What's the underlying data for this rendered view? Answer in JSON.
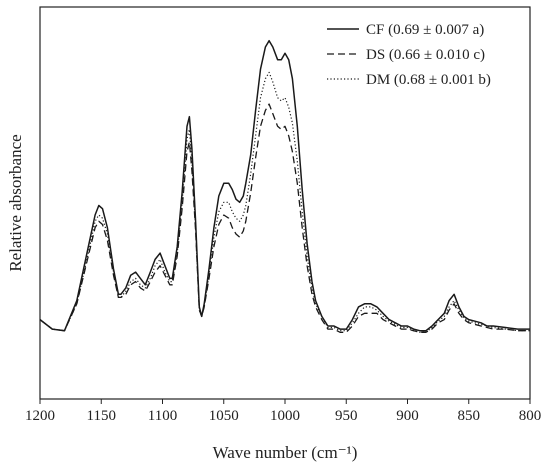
{
  "chart_data": {
    "type": "line",
    "title": "",
    "xlabel": "Wave number (cm⁻¹)",
    "ylabel": "Relative absorbance",
    "x_reversed": true,
    "xlim": [
      1200,
      800
    ],
    "ylim": [
      0,
      1
    ],
    "x_ticks": [
      "1200",
      "1150",
      "1100",
      "1050",
      "1000",
      "950",
      "900",
      "850",
      "800"
    ],
    "x_tick_values": [
      1200,
      1150,
      1100,
      1050,
      1000,
      950,
      900,
      850,
      800
    ],
    "y_ticks_shown": false,
    "grid": false,
    "legend_position": "top-right",
    "series": [
      {
        "name": "CF",
        "legend_label": "CF  (0.69 ± 0.007 a)",
        "line_style": "solid",
        "x": [
          1200,
          1190,
          1180,
          1170,
          1160,
          1155,
          1152,
          1149,
          1145,
          1140,
          1136,
          1134,
          1130,
          1126,
          1122,
          1118,
          1114,
          1110,
          1106,
          1102,
          1098,
          1094,
          1092,
          1088,
          1084,
          1080,
          1078,
          1076,
          1073,
          1070,
          1068,
          1066,
          1062,
          1058,
          1054,
          1050,
          1046,
          1043,
          1040,
          1037,
          1034,
          1032,
          1028,
          1024,
          1020,
          1016,
          1013,
          1010,
          1006,
          1003,
          1000,
          997,
          994,
          990,
          986,
          982,
          978,
          975,
          970,
          965,
          960,
          955,
          950,
          945,
          940,
          935,
          930,
          925,
          920,
          915,
          910,
          905,
          900,
          895,
          890,
          885,
          880,
          875,
          870,
          866,
          862,
          858,
          854,
          850,
          845,
          840,
          835,
          830,
          820,
          810,
          800
        ],
        "y": [
          0.14,
          0.11,
          0.105,
          0.2,
          0.38,
          0.47,
          0.5,
          0.49,
          0.43,
          0.3,
          0.22,
          0.22,
          0.24,
          0.28,
          0.29,
          0.27,
          0.25,
          0.29,
          0.33,
          0.35,
          0.31,
          0.27,
          0.27,
          0.37,
          0.54,
          0.75,
          0.78,
          0.68,
          0.45,
          0.18,
          0.15,
          0.19,
          0.3,
          0.43,
          0.53,
          0.57,
          0.57,
          0.55,
          0.52,
          0.51,
          0.53,
          0.57,
          0.66,
          0.8,
          0.93,
          1.0,
          1.02,
          1.0,
          0.96,
          0.96,
          0.98,
          0.96,
          0.9,
          0.75,
          0.55,
          0.38,
          0.26,
          0.2,
          0.15,
          0.12,
          0.12,
          0.11,
          0.11,
          0.14,
          0.18,
          0.19,
          0.19,
          0.18,
          0.16,
          0.14,
          0.13,
          0.12,
          0.12,
          0.11,
          0.105,
          0.105,
          0.12,
          0.14,
          0.16,
          0.2,
          0.22,
          0.18,
          0.15,
          0.14,
          0.135,
          0.13,
          0.12,
          0.12,
          0.115,
          0.11,
          0.11
        ]
      },
      {
        "name": "DS",
        "legend_label": "DS  (0.66 ± 0.010 c)",
        "line_style": "dashed",
        "x": [
          1200,
          1190,
          1180,
          1170,
          1160,
          1155,
          1152,
          1149,
          1145,
          1140,
          1136,
          1134,
          1130,
          1126,
          1122,
          1118,
          1114,
          1110,
          1106,
          1102,
          1098,
          1094,
          1092,
          1088,
          1084,
          1080,
          1078,
          1076,
          1073,
          1070,
          1068,
          1066,
          1062,
          1058,
          1054,
          1050,
          1046,
          1043,
          1040,
          1037,
          1034,
          1032,
          1028,
          1024,
          1020,
          1016,
          1013,
          1010,
          1006,
          1003,
          1000,
          997,
          994,
          990,
          986,
          982,
          978,
          975,
          970,
          965,
          960,
          955,
          950,
          945,
          940,
          935,
          930,
          925,
          920,
          915,
          910,
          905,
          900,
          895,
          890,
          885,
          880,
          875,
          870,
          866,
          862,
          858,
          854,
          850,
          845,
          840,
          835,
          830,
          820,
          810,
          800
        ],
        "y": [
          0.14,
          0.11,
          0.105,
          0.19,
          0.35,
          0.43,
          0.45,
          0.44,
          0.39,
          0.28,
          0.21,
          0.21,
          0.22,
          0.25,
          0.26,
          0.24,
          0.23,
          0.26,
          0.29,
          0.31,
          0.28,
          0.25,
          0.25,
          0.34,
          0.49,
          0.67,
          0.7,
          0.61,
          0.42,
          0.17,
          0.15,
          0.18,
          0.27,
          0.37,
          0.44,
          0.47,
          0.46,
          0.43,
          0.41,
          0.4,
          0.42,
          0.45,
          0.54,
          0.65,
          0.75,
          0.8,
          0.82,
          0.79,
          0.75,
          0.74,
          0.75,
          0.72,
          0.67,
          0.57,
          0.43,
          0.31,
          0.22,
          0.18,
          0.14,
          0.11,
          0.11,
          0.1,
          0.1,
          0.12,
          0.15,
          0.16,
          0.16,
          0.16,
          0.14,
          0.13,
          0.12,
          0.11,
          0.11,
          0.105,
          0.1,
          0.1,
          0.11,
          0.13,
          0.14,
          0.17,
          0.19,
          0.16,
          0.14,
          0.13,
          0.125,
          0.12,
          0.115,
          0.11,
          0.11,
          0.105,
          0.105
        ]
      },
      {
        "name": "DM",
        "legend_label": "DM (0.68 ± 0.001 b)",
        "line_style": "dotted",
        "x": [
          1200,
          1190,
          1180,
          1170,
          1160,
          1155,
          1152,
          1149,
          1145,
          1140,
          1136,
          1134,
          1130,
          1126,
          1122,
          1118,
          1114,
          1110,
          1106,
          1102,
          1098,
          1094,
          1092,
          1088,
          1084,
          1080,
          1078,
          1076,
          1073,
          1070,
          1068,
          1066,
          1062,
          1058,
          1054,
          1050,
          1046,
          1043,
          1040,
          1037,
          1034,
          1032,
          1028,
          1024,
          1020,
          1016,
          1013,
          1010,
          1006,
          1003,
          1000,
          997,
          994,
          990,
          986,
          982,
          978,
          975,
          970,
          965,
          960,
          955,
          950,
          945,
          940,
          935,
          930,
          925,
          920,
          915,
          910,
          905,
          900,
          895,
          890,
          885,
          880,
          875,
          870,
          866,
          862,
          858,
          854,
          850,
          845,
          840,
          835,
          830,
          820,
          810,
          800
        ],
        "y": [
          0.14,
          0.11,
          0.105,
          0.19,
          0.36,
          0.45,
          0.47,
          0.46,
          0.41,
          0.29,
          0.21,
          0.21,
          0.23,
          0.26,
          0.27,
          0.25,
          0.24,
          0.27,
          0.31,
          0.33,
          0.29,
          0.26,
          0.26,
          0.35,
          0.51,
          0.71,
          0.74,
          0.64,
          0.43,
          0.17,
          0.15,
          0.18,
          0.28,
          0.4,
          0.48,
          0.51,
          0.51,
          0.48,
          0.46,
          0.45,
          0.47,
          0.5,
          0.6,
          0.72,
          0.84,
          0.9,
          0.92,
          0.89,
          0.84,
          0.83,
          0.84,
          0.81,
          0.76,
          0.64,
          0.48,
          0.34,
          0.24,
          0.19,
          0.15,
          0.115,
          0.115,
          0.105,
          0.105,
          0.13,
          0.16,
          0.18,
          0.18,
          0.17,
          0.15,
          0.135,
          0.125,
          0.115,
          0.115,
          0.105,
          0.1,
          0.1,
          0.115,
          0.135,
          0.15,
          0.18,
          0.2,
          0.17,
          0.145,
          0.135,
          0.13,
          0.125,
          0.12,
          0.115,
          0.11,
          0.105,
          0.105
        ]
      }
    ]
  }
}
